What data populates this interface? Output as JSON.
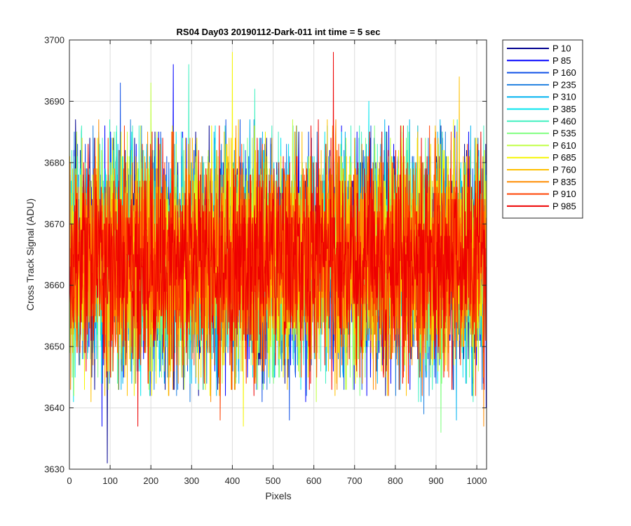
{
  "chart_data": {
    "type": "line",
    "title": "RS04 Day03 20190112-Dark-011 int time = 5 sec",
    "xlabel": "Pixels",
    "ylabel": "Cross Track Signal (ADU)",
    "xlim": [
      0,
      1024
    ],
    "ylim": [
      3630,
      3700
    ],
    "xticks": [
      0,
      100,
      200,
      300,
      400,
      500,
      600,
      700,
      800,
      900,
      1000
    ],
    "yticks": [
      3630,
      3640,
      3650,
      3660,
      3670,
      3680,
      3690,
      3700
    ],
    "grid": true,
    "legend_position": "outside-top-right",
    "series_style": {
      "n_points": 1024,
      "typical_center": 3664,
      "typical_range": [
        3649,
        3680
      ],
      "sampling_note_absent": true
    },
    "series": [
      {
        "name": "P 10",
        "color": "#00008f",
        "mean": 3664.5,
        "spikes": [
          [
            93,
            3631
          ],
          [
            15,
            3687
          ]
        ]
      },
      {
        "name": "P 85",
        "color": "#0000ff",
        "mean": 3664.3,
        "spikes": [
          [
            255,
            3696
          ],
          [
            80,
            3637
          ],
          [
            1023,
            3640
          ]
        ]
      },
      {
        "name": "P 160",
        "color": "#0f50e6",
        "mean": 3664.6,
        "spikes": [
          [
            125,
            3693
          ],
          [
            540,
            3638
          ]
        ]
      },
      {
        "name": "P 235",
        "color": "#1f7fe0",
        "mean": 3664.2,
        "spikes": [
          [
            870,
            3639
          ]
        ]
      },
      {
        "name": "P 310",
        "color": "#00b3f0",
        "mean": 3664.4,
        "spikes": [
          [
            950,
            3638
          ]
        ]
      },
      {
        "name": "P 385",
        "color": "#00e5ee",
        "mean": 3664.1,
        "spikes": [
          [
            735,
            3690
          ]
        ]
      },
      {
        "name": "P 460",
        "color": "#40f0c0",
        "mean": 3664.5,
        "spikes": [
          [
            293,
            3696
          ],
          [
            455,
            3692
          ]
        ]
      },
      {
        "name": "P 535",
        "color": "#7fff7f",
        "mean": 3664.0,
        "spikes": [
          [
            912,
            3636
          ]
        ]
      },
      {
        "name": "P 610",
        "color": "#bfff40",
        "mean": 3664.3,
        "spikes": [
          [
            200,
            3693
          ]
        ]
      },
      {
        "name": "P 685",
        "color": "#f5f500",
        "mean": 3664.6,
        "spikes": [
          [
            400,
            3698
          ],
          [
            427,
            3637
          ]
        ]
      },
      {
        "name": "P 760",
        "color": "#ffc000",
        "mean": 3664.2,
        "spikes": [
          [
            957,
            3694
          ]
        ]
      },
      {
        "name": "P 835",
        "color": "#ff8c00",
        "mean": 3664.4,
        "spikes": [
          [
            1017,
            3637
          ]
        ]
      },
      {
        "name": "P 910",
        "color": "#ff4000",
        "mean": 3664.1,
        "spikes": [
          [
            370,
            3638
          ]
        ]
      },
      {
        "name": "P 985",
        "color": "#ee0000",
        "mean": 3664.5,
        "spikes": [
          [
            648,
            3698
          ],
          [
            168,
            3637
          ]
        ]
      }
    ]
  }
}
